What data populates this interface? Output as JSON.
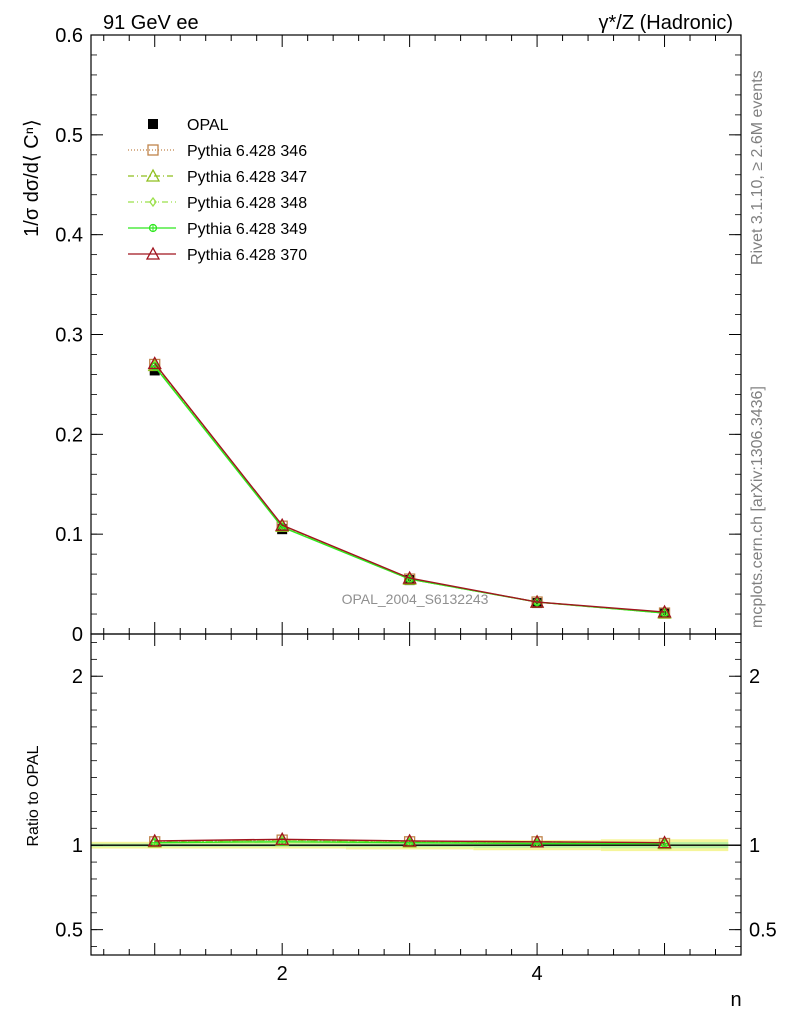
{
  "header": {
    "left": "91 GeV ee",
    "right": "γ*/Z (Hadronic)"
  },
  "side_texts": {
    "rivet": "Rivet 3.1.10, ≥ 2.6M events",
    "mcplots": "mcplots.cern.ch [arXiv:1306.3436]"
  },
  "watermark": "OPAL_2004_S6132243",
  "main_ylabel": "1/σ dσ/d⟨ Cⁿ⟩",
  "ratio_ylabel": "Ratio to OPAL",
  "xlabel": "n",
  "chart_data": [
    {
      "type": "line",
      "panel": "main",
      "x": [
        1,
        2,
        3,
        4,
        5
      ],
      "xlim": [
        0.5,
        5.6
      ],
      "ylim": [
        0,
        0.6
      ],
      "yticks": [
        0,
        0.1,
        0.2,
        0.3,
        0.4,
        0.5,
        0.6
      ],
      "ytick_labels": [
        "0",
        "0.1",
        "0.2",
        "0.3",
        "0.4",
        "0.5",
        "0.6"
      ],
      "xticks": [
        2,
        4
      ],
      "xtick_labels": [
        "2",
        "4"
      ],
      "series": [
        {
          "name": "OPAL",
          "values": [
            0.264,
            0.105,
            0.054,
            0.031,
            0.021
          ],
          "color": "#000000",
          "marker": "square-filled",
          "dash": "none",
          "line": false
        },
        {
          "name": "Pythia 6.428 346",
          "values": [
            0.27,
            0.108,
            0.055,
            0.032,
            0.021
          ],
          "color": "#c0844b",
          "marker": "square-open",
          "dash": "1,2"
        },
        {
          "name": "Pythia 6.428 347",
          "values": [
            0.269,
            0.108,
            0.055,
            0.032,
            0.021
          ],
          "color": "#8fbf1f",
          "marker": "triangle-open",
          "dash": "6,3,1,3"
        },
        {
          "name": "Pythia 6.428 348",
          "values": [
            0.269,
            0.108,
            0.055,
            0.032,
            0.021
          ],
          "color": "#9be04a",
          "marker": "diamond-open",
          "dash": "6,3,1,3,1,3"
        },
        {
          "name": "Pythia 6.428 349",
          "values": [
            0.268,
            0.107,
            0.055,
            0.032,
            0.021
          ],
          "color": "#2ee81e",
          "marker": "circle-cross",
          "dash": "none"
        },
        {
          "name": "Pythia 6.428 370",
          "values": [
            0.271,
            0.109,
            0.056,
            0.032,
            0.022
          ],
          "color": "#a0141e",
          "marker": "triangle-open",
          "dash": "none"
        }
      ]
    },
    {
      "type": "line",
      "panel": "ratio",
      "x": [
        1,
        2,
        3,
        4,
        5
      ],
      "xlim": [
        0.5,
        5.6
      ],
      "ylim": [
        0.35,
        2.25
      ],
      "yticks": [
        0.5,
        1,
        2
      ],
      "ytick_labels": [
        "0.5",
        "1",
        "2"
      ],
      "xticks": [
        2,
        4
      ],
      "xtick_labels": [
        "2",
        "4"
      ],
      "bands": [
        {
          "name": "outer",
          "color": "#f5f59a",
          "half_widths": [
            0.02,
            0.02,
            0.025,
            0.03,
            0.035
          ]
        },
        {
          "name": "inner",
          "color": "#b8f0a0",
          "half_widths": [
            0.01,
            0.01,
            0.012,
            0.015,
            0.018
          ]
        }
      ],
      "series": [
        {
          "name": "Pythia 6.428 346",
          "values": [
            1.02,
            1.03,
            1.02,
            1.02,
            1.01
          ],
          "color": "#c0844b",
          "marker": "square-open",
          "dash": "1,2"
        },
        {
          "name": "Pythia 6.428 347",
          "values": [
            1.02,
            1.03,
            1.02,
            1.02,
            1.01
          ],
          "color": "#8fbf1f",
          "marker": "triangle-open",
          "dash": "6,3,1,3"
        },
        {
          "name": "Pythia 6.428 348",
          "values": [
            1.02,
            1.03,
            1.02,
            1.02,
            1.01
          ],
          "color": "#9be04a",
          "marker": "diamond-open",
          "dash": "6,3,1,3,1,3"
        },
        {
          "name": "Pythia 6.428 349",
          "values": [
            1.015,
            1.02,
            1.015,
            1.01,
            1.01
          ],
          "color": "#2ee81e",
          "marker": "circle-cross",
          "dash": "none"
        },
        {
          "name": "Pythia 6.428 370",
          "values": [
            1.025,
            1.035,
            1.025,
            1.02,
            1.015
          ],
          "color": "#a0141e",
          "marker": "triangle-open",
          "dash": "none"
        }
      ]
    }
  ]
}
